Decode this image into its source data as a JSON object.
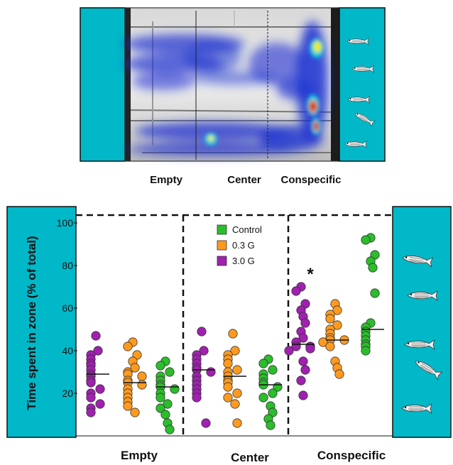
{
  "colors": {
    "cyan_panel": "#00b8c8",
    "control": "#2bbd2b",
    "g03": "#ff9a1f",
    "g30": "#a020b0",
    "heat_blue": "#1a2fd0"
  },
  "icons": {
    "fish": "fish-icon"
  },
  "top_panel": {
    "zone_labels": [
      "Empty",
      "Center",
      "Conspecific"
    ]
  },
  "chart_data": {
    "type": "scatter",
    "xlabel": "",
    "ylabel": "Time spent in zone (% of total)",
    "ylim": [
      0,
      100
    ],
    "yticks": [
      20,
      40,
      60,
      80,
      100
    ],
    "categories": [
      "Empty",
      "Center",
      "Conspecific"
    ],
    "legend": {
      "placement": "top-center",
      "entries": [
        "Control",
        "0.3  G",
        "3.0  G"
      ]
    },
    "series": [
      {
        "name": "3.0  G",
        "color": "#a020b0",
        "medians": [
          29,
          31,
          43
        ],
        "points": [
          [
            47,
            40,
            38,
            36,
            34,
            33,
            31,
            29,
            28,
            26,
            25,
            22,
            20,
            18,
            15,
            13,
            11
          ],
          [
            49,
            40,
            38,
            36,
            34,
            32,
            31,
            30,
            28,
            26,
            24,
            22,
            20,
            18,
            6
          ],
          [
            70,
            68,
            62,
            59,
            56,
            53,
            49,
            46,
            44,
            42,
            42,
            41,
            40,
            35,
            31,
            26,
            19
          ]
        ]
      },
      {
        "name": "0.3  G",
        "color": "#ff9a1f",
        "medians": [
          25,
          28,
          45
        ],
        "points": [
          [
            44,
            42,
            38,
            35,
            32,
            30,
            29,
            28,
            26,
            25,
            24,
            22,
            20,
            18,
            16,
            14,
            11
          ],
          [
            48,
            40,
            38,
            36,
            34,
            31,
            30,
            28,
            26,
            25,
            23,
            20,
            18,
            15,
            6
          ],
          [
            62,
            59,
            57,
            55,
            52,
            50,
            48,
            46,
            45,
            45,
            44,
            42,
            35,
            32,
            29
          ]
        ]
      },
      {
        "name": "Control",
        "color": "#2bbd2b",
        "medians": [
          23,
          24,
          50
        ],
        "points": [
          [
            35,
            33,
            30,
            28,
            26,
            24,
            23,
            22,
            20,
            18,
            15,
            13,
            10,
            6,
            3
          ],
          [
            36,
            34,
            31,
            29,
            27,
            25,
            24,
            23,
            20,
            18,
            14,
            11,
            8,
            5
          ],
          [
            93,
            92,
            85,
            82,
            79,
            67,
            53,
            51,
            49,
            47,
            45,
            43,
            42,
            40
          ]
        ]
      }
    ],
    "annotations": [
      {
        "text": "*",
        "category": "Conspecific",
        "series": "3.0  G"
      }
    ]
  }
}
